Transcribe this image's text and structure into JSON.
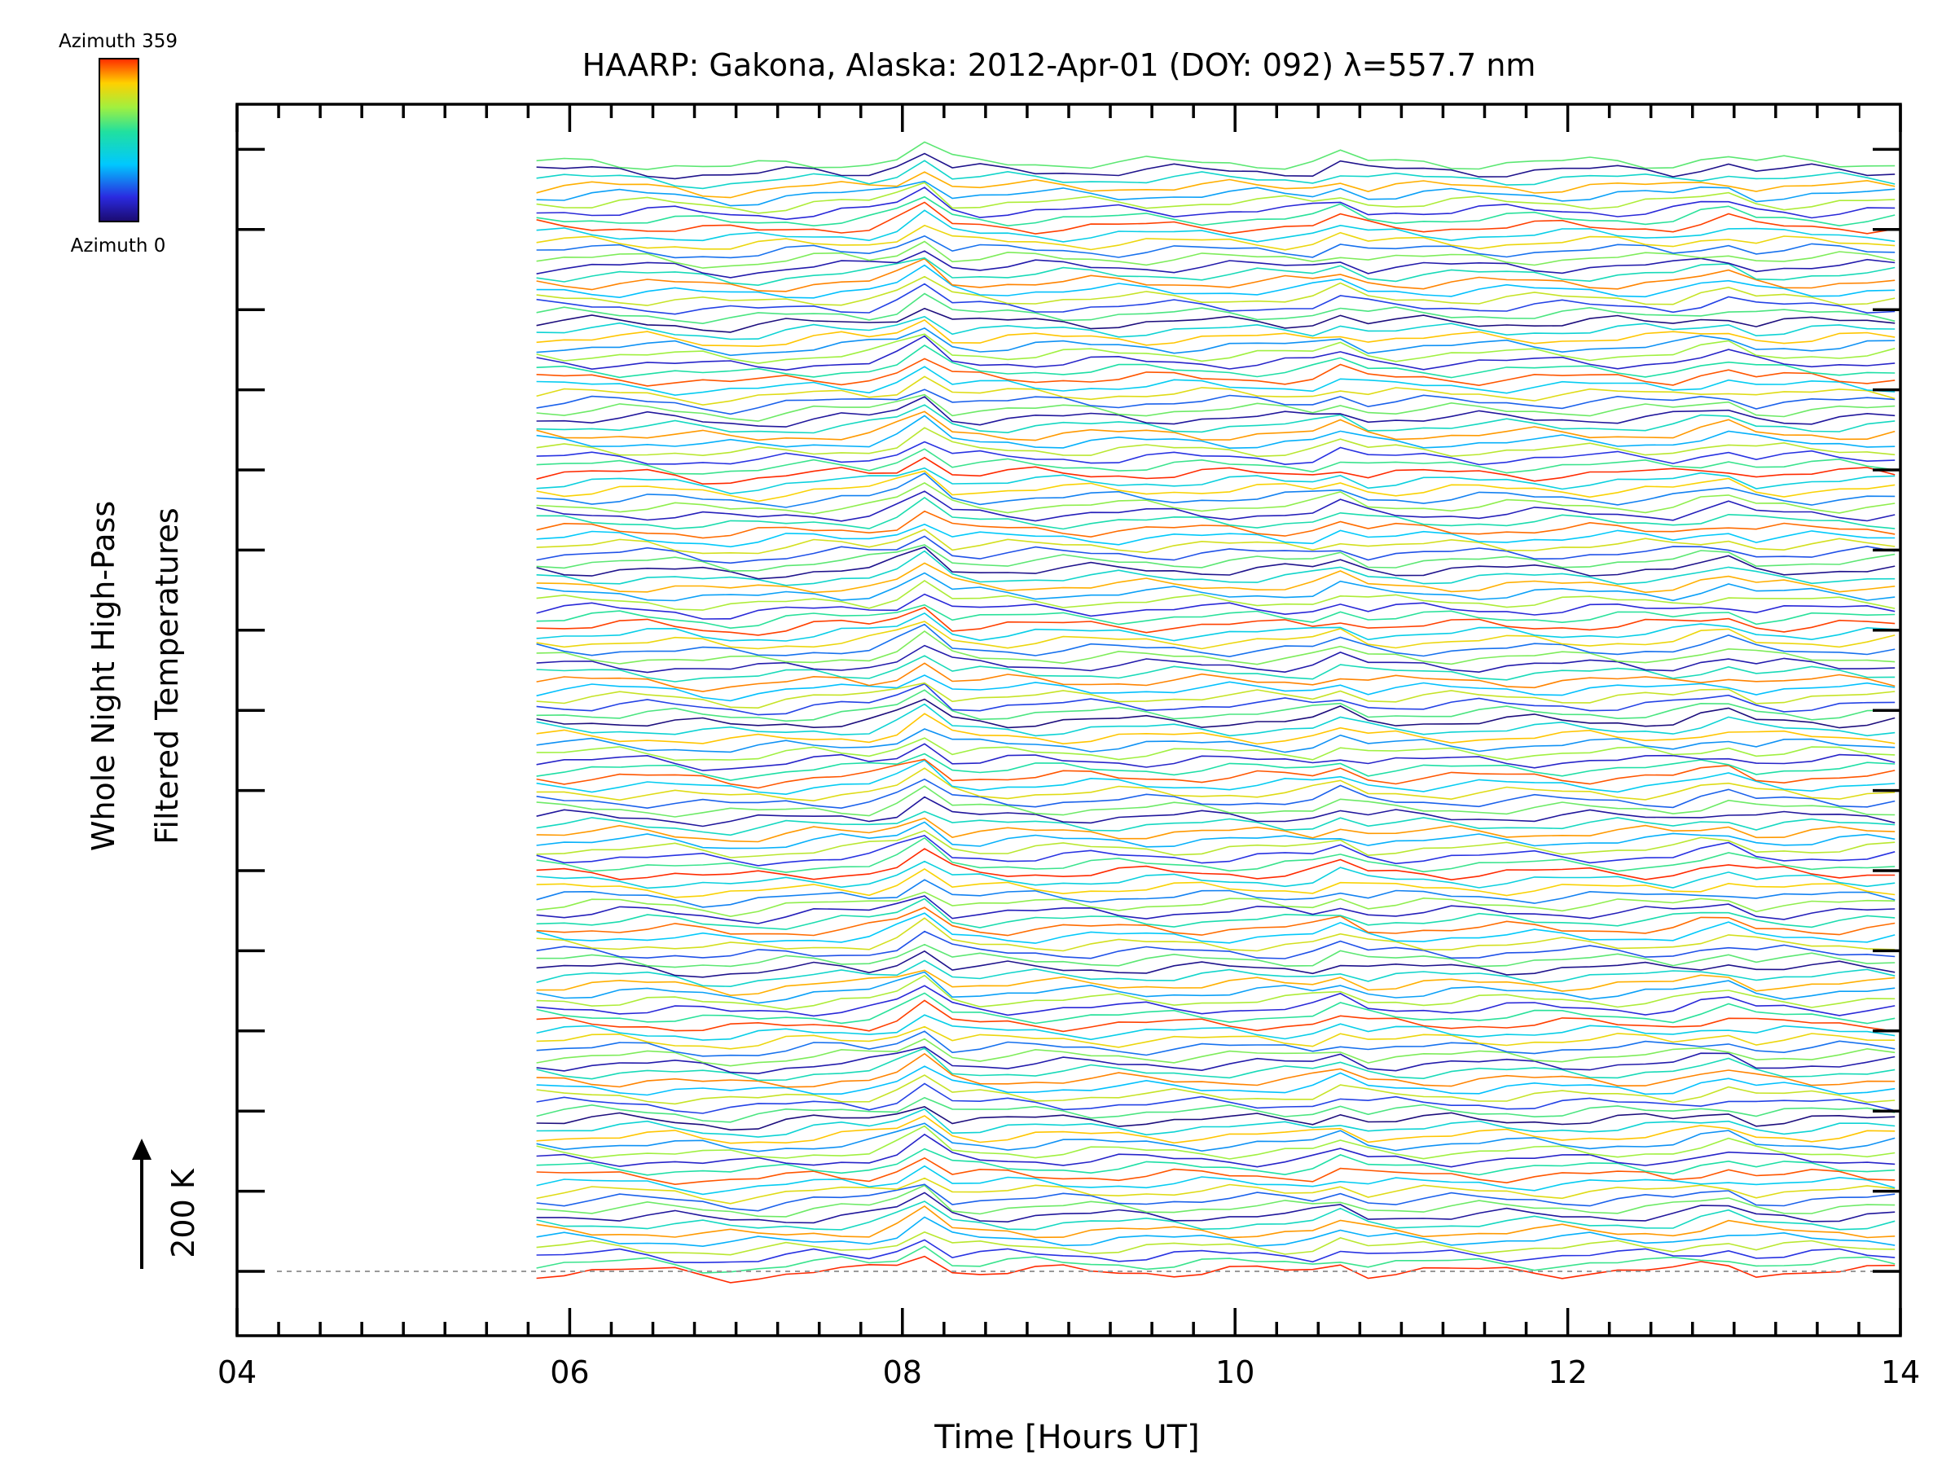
{
  "chart_data": {
    "type": "line",
    "title": "HAARP: Gakona,  Alaska: 2012-Apr-01 (DOY: 092) λ=557.7 nm",
    "xlabel": "Time [Hours UT]",
    "ylabel_line1": "Whole Night High-Pass",
    "ylabel_line2": "Filtered Temperatures",
    "xlim": [
      4,
      14
    ],
    "xticks": [
      "04",
      "06",
      "08",
      "10",
      "12",
      "14"
    ],
    "scale_label": "200 K",
    "colorbar_top_label": "Azimuth  359",
    "colorbar_bottom_label": "Azimuth  0",
    "data_start_hour": 5.8,
    "data_end_hour": 14.0,
    "n_traces": 140,
    "grid": false
  }
}
